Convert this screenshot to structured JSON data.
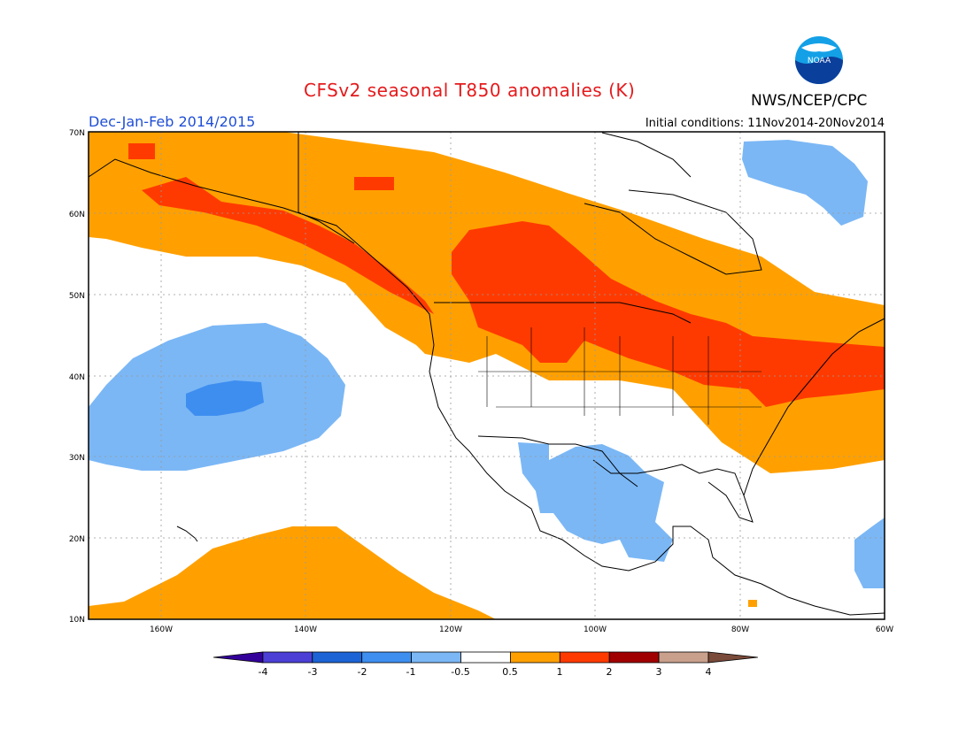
{
  "header": {
    "title": "CFSv2 seasonal T850 anomalies (K)",
    "org": "NWS/NCEP/CPC",
    "season": "Dec-Jan-Feb 2014/2015",
    "initial_conditions": "Initial conditions: 11Nov2014-20Nov2014"
  },
  "logo": {
    "icon": "noaa-logo-icon",
    "text": "NOAA"
  },
  "map": {
    "lat_labels": [
      "70N",
      "60N",
      "50N",
      "40N",
      "30N",
      "20N",
      "10N"
    ],
    "lon_labels": [
      "160W",
      "140W",
      "120W",
      "100W",
      "80W",
      "60W"
    ],
    "extent": {
      "lon": [
        -171,
        -60
      ],
      "lat": [
        10,
        70
      ]
    },
    "gridlines": "dotted",
    "projection": "lat-lon"
  },
  "colorbar": {
    "tick_labels": [
      "-4",
      "-3",
      "-2",
      "-1",
      "-0.5",
      "0.5",
      "1",
      "2",
      "3",
      "4"
    ],
    "colors": [
      "#330099",
      "#4b3fd6",
      "#1c64d6",
      "#3e8ef0",
      "#7bb7f5",
      "#ffffff",
      "#ffa000",
      "#ff3a00",
      "#a00000",
      "#c8a08c",
      "#7a4a3a"
    ],
    "units": "K"
  },
  "chart_data": {
    "type": "heatmap",
    "title": "CFSv2 seasonal T850 anomalies (K)",
    "variable": "850 hPa temperature anomaly",
    "period": "Dec-Jan-Feb 2014/2015",
    "regions": [
      {
        "name": "North Pacific cool anomaly",
        "center": "37N 150W",
        "value_range": "-0.5 to -2"
      },
      {
        "name": "Alaska / Canada warm anomaly",
        "value_range": "0.5 to 2"
      },
      {
        "name": "Great Lakes / US Northeast warm anomaly",
        "value_range": "1 to 2"
      },
      {
        "name": "Mexico / Texas cool anomaly",
        "value_range": "-0.5 to -1"
      },
      {
        "name": "Subtropical Pacific warm anomaly",
        "value_range": "0.5 to 1"
      },
      {
        "name": "Hudson Bay / Labrador cool anomaly",
        "value_range": "-0.5 to -1"
      },
      {
        "name": "Caribbean east cool anomaly",
        "value_range": "-0.5 to -1"
      }
    ]
  }
}
